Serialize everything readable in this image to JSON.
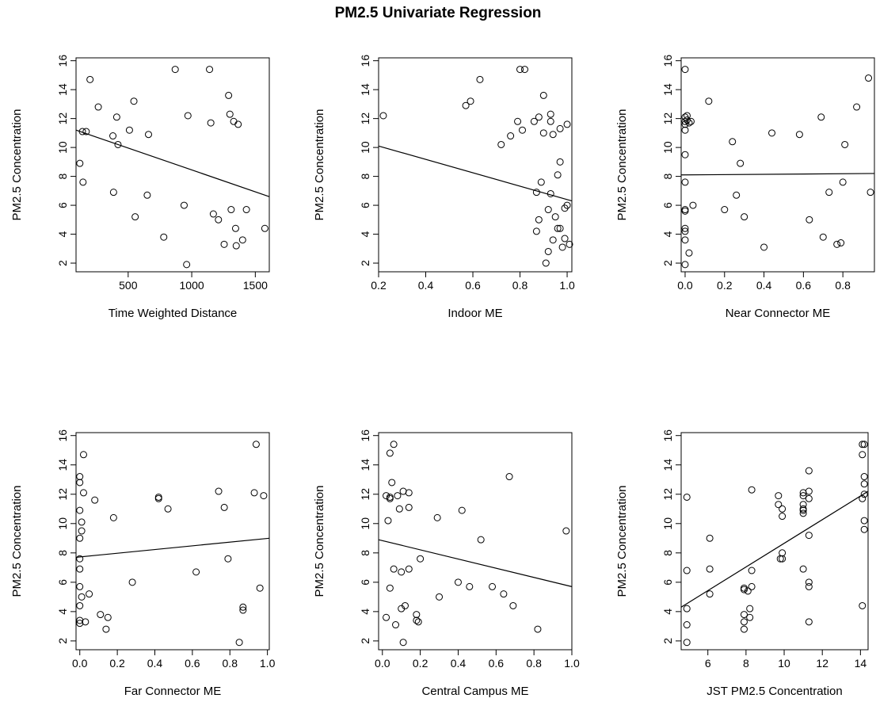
{
  "title": "PM2.5 Univariate Regression",
  "chart_data": [
    {
      "type": "scatter",
      "xlabel": "Time Weighted Distance",
      "ylabel": "PM2.5 Concentration",
      "xlim": [
        90,
        1610
      ],
      "ylim": [
        1.4,
        16.2
      ],
      "xticks": [
        500,
        1000,
        1500
      ],
      "yticks": [
        2,
        4,
        6,
        8,
        10,
        12,
        14,
        16
      ],
      "fit": {
        "x": [
          90,
          1610
        ],
        "y": [
          11.2,
          6.6
        ]
      },
      "points": [
        [
          120,
          8.9
        ],
        [
          145,
          7.6
        ],
        [
          140,
          11.1
        ],
        [
          170,
          11.1
        ],
        [
          200,
          14.7
        ],
        [
          265,
          12.8
        ],
        [
          380,
          10.8
        ],
        [
          385,
          6.9
        ],
        [
          410,
          12.1
        ],
        [
          420,
          10.2
        ],
        [
          510,
          11.2
        ],
        [
          545,
          13.2
        ],
        [
          555,
          5.2
        ],
        [
          650,
          6.7
        ],
        [
          660,
          10.9
        ],
        [
          780,
          3.8
        ],
        [
          870,
          15.4
        ],
        [
          940,
          6.0
        ],
        [
          960,
          1.9
        ],
        [
          970,
          12.2
        ],
        [
          1140,
          15.4
        ],
        [
          1150,
          11.7
        ],
        [
          1170,
          5.4
        ],
        [
          1210,
          5.0
        ],
        [
          1255,
          3.3
        ],
        [
          1290,
          13.6
        ],
        [
          1300,
          12.3
        ],
        [
          1310,
          5.7
        ],
        [
          1330,
          11.8
        ],
        [
          1345,
          4.4
        ],
        [
          1350,
          3.2
        ],
        [
          1365,
          11.6
        ],
        [
          1400,
          3.6
        ],
        [
          1430,
          5.7
        ],
        [
          1575,
          4.4
        ]
      ]
    },
    {
      "type": "scatter",
      "xlabel": "Indoor ME",
      "ylabel": "PM2.5 Concentration",
      "xlim": [
        0.2,
        1.02
      ],
      "ylim": [
        1.4,
        16.2
      ],
      "xticks": [
        0.2,
        0.4,
        0.6,
        0.8,
        1.0
      ],
      "yticks": [
        2,
        4,
        6,
        8,
        10,
        12,
        14,
        16
      ],
      "fit": {
        "x": [
          0.2,
          1.02
        ],
        "y": [
          10.1,
          6.3
        ]
      },
      "points": [
        [
          0.22,
          12.2
        ],
        [
          0.57,
          12.9
        ],
        [
          0.59,
          13.2
        ],
        [
          0.63,
          14.7
        ],
        [
          0.72,
          10.2
        ],
        [
          0.76,
          10.8
        ],
        [
          0.79,
          11.8
        ],
        [
          0.8,
          15.4
        ],
        [
          0.81,
          11.2
        ],
        [
          0.82,
          15.4
        ],
        [
          0.86,
          11.8
        ],
        [
          0.87,
          6.9
        ],
        [
          0.88,
          5.0
        ],
        [
          0.87,
          4.2
        ],
        [
          0.88,
          12.1
        ],
        [
          0.89,
          7.6
        ],
        [
          0.9,
          13.6
        ],
        [
          0.9,
          11.0
        ],
        [
          0.91,
          2.0
        ],
        [
          0.92,
          5.7
        ],
        [
          0.92,
          2.8
        ],
        [
          0.93,
          12.3
        ],
        [
          0.93,
          11.8
        ],
        [
          0.94,
          10.9
        ],
        [
          0.93,
          6.8
        ],
        [
          0.94,
          3.6
        ],
        [
          0.95,
          5.2
        ],
        [
          0.96,
          8.1
        ],
        [
          0.96,
          4.4
        ],
        [
          0.97,
          9.0
        ],
        [
          0.97,
          11.3
        ],
        [
          0.97,
          4.4
        ],
        [
          0.98,
          3.1
        ],
        [
          0.99,
          3.7
        ],
        [
          0.99,
          5.8
        ],
        [
          1.0,
          6.0
        ],
        [
          1.0,
          11.6
        ],
        [
          1.01,
          3.3
        ]
      ]
    },
    {
      "type": "scatter",
      "xlabel": "Near Connector ME",
      "ylabel": "PM2.5 Concentration",
      "xlim": [
        -0.02,
        0.96
      ],
      "ylim": [
        1.4,
        16.2
      ],
      "xticks": [
        0.0,
        0.2,
        0.4,
        0.6,
        0.8
      ],
      "yticks": [
        2,
        4,
        6,
        8,
        10,
        12,
        14,
        16
      ],
      "fit": {
        "x": [
          -0.02,
          0.96
        ],
        "y": [
          8.1,
          8.2
        ]
      },
      "points": [
        [
          0.0,
          15.4
        ],
        [
          0.0,
          12.1
        ],
        [
          0.0,
          11.8
        ],
        [
          0.0,
          11.6
        ],
        [
          0.0,
          11.2
        ],
        [
          0.0,
          9.5
        ],
        [
          0.0,
          7.6
        ],
        [
          0.0,
          5.7
        ],
        [
          0.0,
          5.6
        ],
        [
          0.0,
          4.4
        ],
        [
          0.0,
          4.2
        ],
        [
          0.0,
          3.6
        ],
        [
          0.0,
          1.9
        ],
        [
          0.01,
          12.2
        ],
        [
          0.01,
          11.9
        ],
        [
          0.02,
          2.7
        ],
        [
          0.02,
          11.7
        ],
        [
          0.03,
          11.8
        ],
        [
          0.04,
          6.0
        ],
        [
          0.12,
          13.2
        ],
        [
          0.2,
          5.7
        ],
        [
          0.24,
          10.4
        ],
        [
          0.26,
          6.7
        ],
        [
          0.28,
          8.9
        ],
        [
          0.3,
          5.2
        ],
        [
          0.4,
          3.1
        ],
        [
          0.44,
          11.0
        ],
        [
          0.58,
          10.9
        ],
        [
          0.63,
          5.0
        ],
        [
          0.69,
          12.1
        ],
        [
          0.7,
          3.8
        ],
        [
          0.73,
          6.9
        ],
        [
          0.77,
          3.3
        ],
        [
          0.79,
          3.4
        ],
        [
          0.8,
          7.6
        ],
        [
          0.81,
          10.2
        ],
        [
          0.87,
          12.8
        ],
        [
          0.93,
          14.8
        ],
        [
          0.94,
          6.9
        ]
      ]
    },
    {
      "type": "scatter",
      "xlabel": "Far Connector ME",
      "ylabel": "PM2.5 Concentration",
      "xlim": [
        -0.02,
        1.01
      ],
      "ylim": [
        1.4,
        16.2
      ],
      "xticks": [
        0.0,
        0.2,
        0.4,
        0.6,
        0.8,
        1.0
      ],
      "yticks": [
        2,
        4,
        6,
        8,
        10,
        12,
        14,
        16
      ],
      "fit": {
        "x": [
          -0.02,
          1.01
        ],
        "y": [
          7.7,
          9.0
        ]
      },
      "points": [
        [
          0.0,
          13.2
        ],
        [
          0.0,
          12.8
        ],
        [
          0.0,
          10.9
        ],
        [
          0.0,
          9.0
        ],
        [
          0.0,
          7.6
        ],
        [
          0.0,
          6.9
        ],
        [
          0.0,
          5.7
        ],
        [
          0.0,
          4.4
        ],
        [
          0.0,
          3.4
        ],
        [
          0.0,
          3.2
        ],
        [
          0.01,
          10.1
        ],
        [
          0.01,
          5.0
        ],
        [
          0.01,
          9.5
        ],
        [
          0.02,
          12.1
        ],
        [
          0.02,
          14.7
        ],
        [
          0.03,
          3.3
        ],
        [
          0.05,
          5.2
        ],
        [
          0.08,
          11.6
        ],
        [
          0.11,
          3.8
        ],
        [
          0.14,
          2.8
        ],
        [
          0.15,
          3.6
        ],
        [
          0.18,
          10.4
        ],
        [
          0.28,
          6.0
        ],
        [
          0.42,
          11.8
        ],
        [
          0.42,
          11.7
        ],
        [
          0.47,
          11.0
        ],
        [
          0.62,
          6.7
        ],
        [
          0.74,
          12.2
        ],
        [
          0.77,
          11.1
        ],
        [
          0.79,
          7.6
        ],
        [
          0.85,
          1.9
        ],
        [
          0.87,
          4.3
        ],
        [
          0.87,
          4.1
        ],
        [
          0.93,
          12.1
        ],
        [
          0.94,
          15.4
        ],
        [
          0.96,
          5.6
        ],
        [
          0.98,
          11.9
        ]
      ]
    },
    {
      "type": "scatter",
      "xlabel": "Central Campus ME",
      "ylabel": "PM2.5 Concentration",
      "xlim": [
        -0.02,
        1.0
      ],
      "ylim": [
        1.4,
        16.2
      ],
      "xticks": [
        0.0,
        0.2,
        0.4,
        0.6,
        0.8,
        1.0
      ],
      "yticks": [
        2,
        4,
        6,
        8,
        10,
        12,
        14,
        16
      ],
      "fit": {
        "x": [
          -0.02,
          1.0
        ],
        "y": [
          8.9,
          5.7
        ]
      },
      "points": [
        [
          0.02,
          11.9
        ],
        [
          0.02,
          3.6
        ],
        [
          0.03,
          10.2
        ],
        [
          0.04,
          11.8
        ],
        [
          0.04,
          11.7
        ],
        [
          0.04,
          5.6
        ],
        [
          0.04,
          14.8
        ],
        [
          0.05,
          12.8
        ],
        [
          0.06,
          15.4
        ],
        [
          0.06,
          6.9
        ],
        [
          0.07,
          3.1
        ],
        [
          0.08,
          11.9
        ],
        [
          0.09,
          11.0
        ],
        [
          0.1,
          6.7
        ],
        [
          0.1,
          4.2
        ],
        [
          0.11,
          1.9
        ],
        [
          0.11,
          12.2
        ],
        [
          0.12,
          4.4
        ],
        [
          0.14,
          6.9
        ],
        [
          0.14,
          12.1
        ],
        [
          0.14,
          11.1
        ],
        [
          0.18,
          3.8
        ],
        [
          0.18,
          3.4
        ],
        [
          0.19,
          3.3
        ],
        [
          0.2,
          7.6
        ],
        [
          0.29,
          10.4
        ],
        [
          0.3,
          5.0
        ],
        [
          0.4,
          6.0
        ],
        [
          0.42,
          10.9
        ],
        [
          0.46,
          5.7
        ],
        [
          0.52,
          8.9
        ],
        [
          0.58,
          5.7
        ],
        [
          0.64,
          5.2
        ],
        [
          0.67,
          13.2
        ],
        [
          0.69,
          4.4
        ],
        [
          0.82,
          2.8
        ],
        [
          0.97,
          9.5
        ]
      ]
    },
    {
      "type": "scatter",
      "xlabel": "JST PM2.5 Concentration",
      "ylabel": "PM2.5 Concentration",
      "xlim": [
        4.6,
        14.4
      ],
      "ylim": [
        1.4,
        16.2
      ],
      "xticks": [
        6,
        8,
        10,
        12,
        14
      ],
      "yticks": [
        2,
        4,
        6,
        8,
        10,
        12,
        14,
        16
      ],
      "fit": {
        "x": [
          4.6,
          14.4
        ],
        "y": [
          4.3,
          12.2
        ]
      },
      "points": [
        [
          4.9,
          11.8
        ],
        [
          4.9,
          6.8
        ],
        [
          4.9,
          4.2
        ],
        [
          4.9,
          3.1
        ],
        [
          4.9,
          1.9
        ],
        [
          6.1,
          9.0
        ],
        [
          6.1,
          6.9
        ],
        [
          6.1,
          5.2
        ],
        [
          7.9,
          5.5
        ],
        [
          7.9,
          5.6
        ],
        [
          7.9,
          3.8
        ],
        [
          7.9,
          3.3
        ],
        [
          7.9,
          2.8
        ],
        [
          8.1,
          5.4
        ],
        [
          8.2,
          4.2
        ],
        [
          8.2,
          3.6
        ],
        [
          8.3,
          12.3
        ],
        [
          8.3,
          6.8
        ],
        [
          8.3,
          5.7
        ],
        [
          9.7,
          11.9
        ],
        [
          9.7,
          11.3
        ],
        [
          9.8,
          7.6
        ],
        [
          9.9,
          8.0
        ],
        [
          9.9,
          7.6
        ],
        [
          9.9,
          10.5
        ],
        [
          9.9,
          11.0
        ],
        [
          11.0,
          12.1
        ],
        [
          11.0,
          11.9
        ],
        [
          11.0,
          11.3
        ],
        [
          11.0,
          11.0
        ],
        [
          11.0,
          10.9
        ],
        [
          11.0,
          10.7
        ],
        [
          11.0,
          6.9
        ],
        [
          11.3,
          13.6
        ],
        [
          11.3,
          12.2
        ],
        [
          11.3,
          11.7
        ],
        [
          11.3,
          9.2
        ],
        [
          11.3,
          6.0
        ],
        [
          11.3,
          5.7
        ],
        [
          11.3,
          3.3
        ],
        [
          14.1,
          15.4
        ],
        [
          14.2,
          15.4
        ],
        [
          14.1,
          14.7
        ],
        [
          14.2,
          13.2
        ],
        [
          14.2,
          12.7
        ],
        [
          14.2,
          12.0
        ],
        [
          14.1,
          11.7
        ],
        [
          14.2,
          10.2
        ],
        [
          14.2,
          9.6
        ],
        [
          14.1,
          4.4
        ]
      ]
    }
  ]
}
